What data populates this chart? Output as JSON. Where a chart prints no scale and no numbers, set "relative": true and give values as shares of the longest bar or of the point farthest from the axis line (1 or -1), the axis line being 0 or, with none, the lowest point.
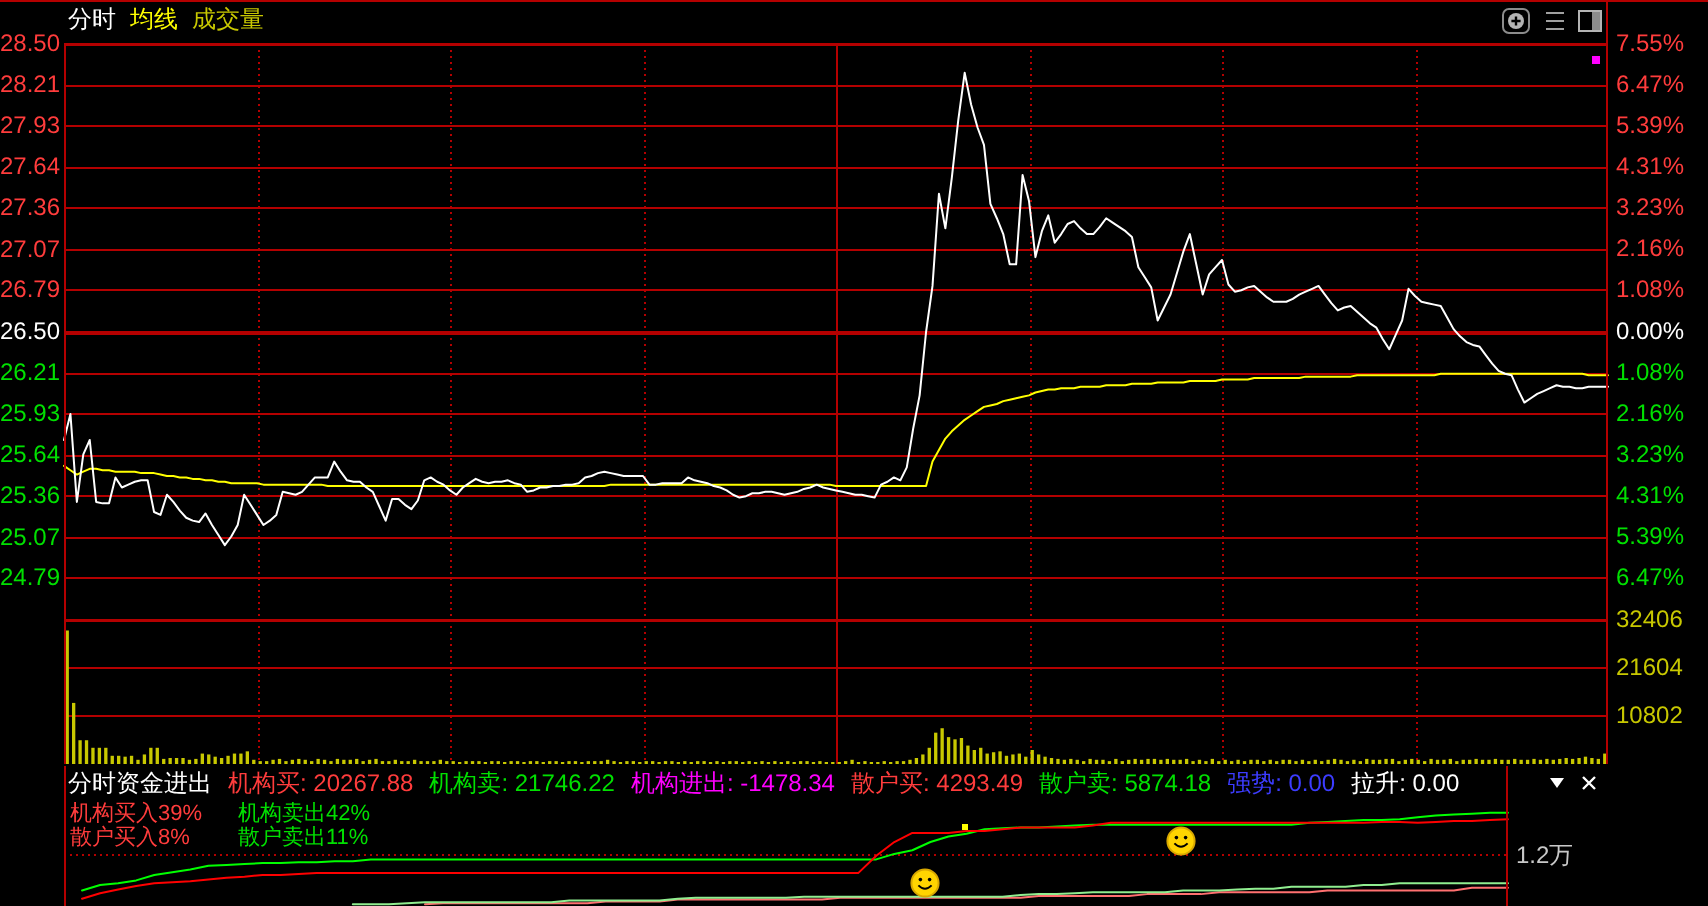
{
  "chart_data": [
    {
      "type": "line",
      "categories": [
        null,
        null,
        null,
        null,
        null,
        null,
        null,
        null,
        null,
        null,
        null,
        null,
        null,
        null,
        null,
        null,
        null,
        null,
        null,
        null,
        null,
        null,
        null,
        null,
        null,
        null,
        null,
        null,
        null,
        null,
        null,
        null,
        null,
        null,
        null,
        null,
        null,
        null,
        null,
        null,
        null,
        null,
        null,
        null,
        null,
        null,
        null,
        null,
        null,
        null,
        null,
        null,
        null,
        null,
        null,
        null,
        null,
        null,
        null,
        null,
        null,
        null,
        null,
        null,
        null,
        null,
        null,
        null,
        null,
        null,
        null,
        null,
        null,
        null,
        null,
        null,
        null,
        null,
        null,
        null,
        null,
        null,
        null,
        null,
        null,
        null,
        null,
        null,
        null,
        null,
        null,
        null,
        null,
        null,
        null,
        null,
        null,
        null,
        null,
        null,
        null,
        null,
        null,
        null,
        null,
        null,
        null,
        null,
        null,
        null,
        null,
        null,
        null,
        null,
        null,
        null,
        null,
        null,
        null,
        null,
        null,
        null,
        null,
        null,
        null,
        null,
        null,
        null,
        null,
        null,
        null,
        null,
        null,
        null,
        null,
        null,
        null,
        null,
        null,
        null,
        null,
        null,
        null,
        null,
        null,
        null,
        null,
        null,
        null,
        null,
        null,
        null,
        null,
        null,
        null,
        null,
        null,
        null,
        null,
        null,
        null,
        null,
        null,
        null,
        null,
        null,
        null,
        null,
        null,
        null,
        null,
        null,
        null,
        null,
        null,
        null,
        null,
        null,
        null,
        null,
        null,
        null,
        null,
        null,
        null,
        null,
        null,
        null,
        null,
        null,
        null,
        null,
        null,
        null,
        null,
        null,
        null,
        null,
        null,
        null,
        null,
        null,
        null,
        null,
        null,
        null,
        null,
        null,
        null,
        null,
        null,
        null,
        null,
        null,
        null,
        null,
        null,
        null,
        null,
        null,
        null,
        null,
        null,
        null,
        null,
        null,
        null,
        null,
        null,
        null,
        null,
        null,
        null,
        null,
        null,
        null,
        null,
        null,
        null,
        null,
        null
      ],
      "series": [
        {
          "name": "分时",
          "color": "#ffffff",
          "values": [
            25.75,
            25.93,
            25.32,
            25.65,
            25.75,
            25.32,
            25.31,
            25.31,
            25.49,
            25.42,
            25.44,
            25.46,
            25.47,
            25.47,
            25.25,
            25.23,
            25.37,
            25.32,
            25.26,
            25.21,
            25.19,
            25.18,
            25.24,
            25.16,
            25.09,
            25.02,
            25.08,
            25.16,
            25.37,
            25.3,
            25.23,
            25.16,
            25.19,
            25.23,
            25.39,
            25.38,
            25.37,
            25.39,
            25.44,
            25.49,
            25.49,
            25.49,
            25.6,
            25.53,
            25.47,
            25.46,
            25.46,
            25.42,
            25.39,
            25.29,
            25.19,
            25.34,
            25.34,
            25.3,
            25.27,
            25.33,
            25.47,
            25.49,
            25.46,
            25.44,
            25.4,
            25.37,
            25.42,
            25.45,
            25.48,
            25.46,
            25.45,
            25.46,
            25.46,
            25.47,
            25.45,
            25.44,
            25.39,
            25.4,
            25.42,
            25.42,
            25.43,
            25.43,
            25.44,
            25.44,
            25.45,
            25.49,
            25.5,
            25.52,
            25.53,
            25.52,
            25.51,
            25.5,
            25.5,
            25.5,
            25.5,
            25.44,
            25.44,
            25.45,
            25.45,
            25.45,
            25.45,
            25.49,
            25.47,
            25.46,
            25.45,
            25.43,
            25.42,
            25.4,
            25.37,
            25.35,
            25.36,
            25.38,
            25.38,
            25.39,
            25.39,
            25.38,
            25.37,
            25.38,
            25.39,
            25.41,
            25.42,
            25.44,
            25.42,
            25.41,
            25.4,
            25.39,
            25.38,
            25.37,
            25.37,
            25.36,
            25.35,
            25.44,
            25.46,
            25.49,
            25.47,
            25.56,
            25.83,
            26.06,
            26.5,
            26.82,
            27.46,
            27.22,
            27.57,
            27.97,
            28.3,
            28.08,
            27.92,
            27.8,
            27.39,
            27.29,
            27.18,
            26.97,
            26.97,
            27.59,
            27.41,
            27.02,
            27.2,
            27.31,
            27.12,
            27.18,
            27.25,
            27.27,
            27.22,
            27.18,
            27.18,
            27.23,
            27.29,
            27.26,
            27.23,
            27.2,
            27.16,
            26.95,
            26.88,
            26.81,
            26.58,
            26.67,
            26.76,
            26.91,
            27.06,
            27.18,
            26.97,
            26.76,
            26.9,
            26.95,
            27.0,
            26.83,
            26.78,
            26.79,
            26.81,
            26.82,
            26.78,
            26.74,
            26.71,
            26.71,
            26.71,
            26.73,
            26.76,
            26.78,
            26.8,
            26.82,
            26.76,
            26.7,
            26.65,
            26.67,
            26.68,
            26.64,
            26.6,
            26.56,
            26.53,
            26.45,
            26.38,
            26.48,
            26.58,
            26.8,
            26.75,
            26.71,
            26.7,
            26.69,
            26.68,
            26.6,
            26.52,
            26.47,
            26.43,
            26.41,
            26.4,
            26.34,
            26.28,
            26.23,
            26.21,
            26.2,
            26.1,
            26.01,
            26.04,
            26.07,
            26.09,
            26.11,
            26.13,
            26.12,
            26.12,
            26.11,
            26.11,
            26.12,
            26.12,
            26.12,
            26.12
          ]
        },
        {
          "name": "均线",
          "color": "#ffff00",
          "values": [
            25.57,
            25.54,
            25.51,
            25.53,
            25.55,
            25.55,
            25.54,
            25.54,
            25.53,
            25.53,
            25.53,
            25.53,
            25.52,
            25.52,
            25.52,
            25.51,
            25.5,
            25.5,
            25.49,
            25.49,
            25.48,
            25.48,
            25.47,
            25.47,
            25.46,
            25.46,
            25.45,
            25.45,
            25.45,
            25.45,
            25.45,
            25.44,
            25.44,
            25.44,
            25.44,
            25.44,
            25.44,
            25.44,
            25.44,
            25.44,
            25.44,
            25.43,
            25.43,
            25.43,
            25.43,
            25.43,
            25.43,
            25.43,
            25.43,
            25.43,
            25.43,
            25.43,
            25.43,
            25.43,
            25.43,
            25.43,
            25.43,
            25.43,
            25.43,
            25.43,
            25.43,
            25.43,
            25.43,
            25.43,
            25.43,
            25.43,
            25.43,
            25.43,
            25.43,
            25.43,
            25.43,
            25.43,
            25.43,
            25.43,
            25.43,
            25.43,
            25.43,
            25.43,
            25.43,
            25.43,
            25.43,
            25.43,
            25.43,
            25.43,
            25.43,
            25.44,
            25.44,
            25.44,
            25.44,
            25.44,
            25.44,
            25.44,
            25.44,
            25.44,
            25.44,
            25.44,
            25.44,
            25.44,
            25.44,
            25.44,
            25.44,
            25.44,
            25.44,
            25.44,
            25.44,
            25.44,
            25.44,
            25.44,
            25.44,
            25.44,
            25.44,
            25.44,
            25.44,
            25.44,
            25.44,
            25.44,
            25.44,
            25.44,
            25.44,
            25.44,
            25.43,
            25.43,
            25.43,
            25.43,
            25.43,
            25.43,
            25.43,
            25.43,
            25.43,
            25.43,
            25.43,
            25.43,
            25.43,
            25.43,
            25.43,
            25.6,
            25.68,
            25.76,
            25.81,
            25.85,
            25.89,
            25.92,
            25.95,
            25.98,
            25.99,
            26.0,
            26.02,
            26.03,
            26.04,
            26.05,
            26.06,
            26.08,
            26.09,
            26.1,
            26.1,
            26.11,
            26.11,
            26.11,
            26.12,
            26.12,
            26.12,
            26.12,
            26.13,
            26.13,
            26.13,
            26.13,
            26.14,
            26.14,
            26.14,
            26.14,
            26.15,
            26.15,
            26.15,
            26.15,
            26.15,
            26.16,
            26.16,
            26.16,
            26.16,
            26.16,
            26.17,
            26.17,
            26.17,
            26.17,
            26.17,
            26.18,
            26.18,
            26.18,
            26.18,
            26.18,
            26.18,
            26.18,
            26.18,
            26.19,
            26.19,
            26.19,
            26.19,
            26.19,
            26.19,
            26.19,
            26.19,
            26.2,
            26.2,
            26.2,
            26.2,
            26.2,
            26.2,
            26.2,
            26.2,
            26.2,
            26.2,
            26.2,
            26.2,
            26.2,
            26.21,
            26.21,
            26.21,
            26.21,
            26.21,
            26.21,
            26.21,
            26.21,
            26.21,
            26.21,
            26.21,
            26.21,
            26.21,
            26.21,
            26.21,
            26.21,
            26.21,
            26.21,
            26.21,
            26.21,
            26.21,
            26.21,
            26.21,
            26.2,
            26.2,
            26.2,
            26.2
          ]
        }
      ],
      "ylim": [
        24.5,
        28.5
      ],
      "yticks": [
        {
          "value": 28.5,
          "label": "28.50"
        },
        28.21,
        27.93,
        27.64,
        27.36,
        27.07,
        26.79,
        {
          "value": 26.5,
          "label": "26.50"
        },
        26.21,
        25.93,
        25.64,
        25.36,
        25.07,
        24.79
      ],
      "y2lim": [
        -7.55,
        7.55
      ],
      "y2ticks": [
        {
          "value": 7.55,
          "label": "7.55%"
        },
        {
          "value": 6.47,
          "label": "6.47%"
        },
        {
          "value": 5.39,
          "label": "5.39%"
        },
        {
          "value": 4.31,
          "label": "4.31%"
        },
        {
          "value": 3.23,
          "label": "3.23%"
        },
        {
          "value": 2.16,
          "label": "2.16%"
        },
        {
          "value": 1.08,
          "label": "1.08%"
        },
        {
          "value": 0,
          "label": "0.00%"
        },
        {
          "value": -1.08,
          "label": "1.08%"
        },
        {
          "value": -2.16,
          "label": "2.16%"
        },
        {
          "value": -3.23,
          "label": "3.23%"
        },
        {
          "value": -4.31,
          "label": "4.31%"
        },
        {
          "value": -5.39,
          "label": "5.39%"
        },
        {
          "value": -6.47,
          "label": "6.47%"
        }
      ],
      "ref_lines": [
        {
          "axis": "y",
          "value": 26.5
        }
      ],
      "grid": true
    },
    {
      "type": "bar",
      "categories": [
        null,
        null,
        null,
        null,
        null,
        null,
        null,
        null,
        null,
        null,
        null,
        null,
        null,
        null,
        null,
        null,
        null,
        null,
        null,
        null,
        null,
        null,
        null,
        null,
        null,
        null,
        null,
        null,
        null,
        null,
        null,
        null,
        null,
        null,
        null,
        null,
        null,
        null,
        null,
        null,
        null,
        null,
        null,
        null,
        null,
        null,
        null,
        null,
        null,
        null,
        null,
        null,
        null,
        null,
        null,
        null,
        null,
        null,
        null,
        null,
        null,
        null,
        null,
        null,
        null,
        null,
        null,
        null,
        null,
        null,
        null,
        null,
        null,
        null,
        null,
        null,
        null,
        null,
        null,
        null,
        null,
        null,
        null,
        null,
        null,
        null,
        null,
        null,
        null,
        null,
        null,
        null,
        null,
        null,
        null,
        null,
        null,
        null,
        null,
        null,
        null,
        null,
        null,
        null,
        null,
        null,
        null,
        null,
        null,
        null,
        null,
        null,
        null,
        null,
        null,
        null,
        null,
        null,
        null,
        null,
        null,
        null,
        null,
        null,
        null,
        null,
        null,
        null,
        null,
        null,
        null,
        null,
        null,
        null,
        null,
        null,
        null,
        null,
        null,
        null,
        null,
        null,
        null,
        null,
        null,
        null,
        null,
        null,
        null,
        null,
        null,
        null,
        null,
        null,
        null,
        null,
        null,
        null,
        null,
        null,
        null,
        null,
        null,
        null,
        null,
        null,
        null,
        null,
        null,
        null,
        null,
        null,
        null,
        null,
        null,
        null,
        null,
        null,
        null,
        null,
        null,
        null,
        null,
        null,
        null,
        null,
        null,
        null,
        null,
        null,
        null,
        null,
        null,
        null,
        null,
        null,
        null,
        null,
        null,
        null,
        null,
        null,
        null,
        null,
        null,
        null,
        null,
        null,
        null,
        null,
        null,
        null,
        null,
        null,
        null,
        null,
        null,
        null,
        null,
        null,
        null,
        null,
        null,
        null,
        null,
        null,
        null,
        null,
        null,
        null,
        null,
        null,
        null,
        null,
        null,
        null,
        null,
        null,
        null,
        null
      ],
      "series": [
        {
          "name": "成交量",
          "color": "#c8c800",
          "values": [
            29900,
            13600,
            5200,
            5200,
            3500,
            3500,
            3500,
            1700,
            1700,
            1500,
            1700,
            800,
            2000,
            3500,
            3500,
            1000,
            1200,
            1200,
            1200,
            800,
            1000,
            2200,
            2000,
            1500,
            1200,
            1700,
            2200,
            2200,
            2700,
            800,
            500,
            500,
            800,
            1000,
            500,
            800,
            1000,
            800,
            500,
            1000,
            800,
            500,
            1000,
            800,
            800,
            1000,
            500,
            800,
            1000,
            500,
            500,
            800,
            500,
            500,
            800,
            500,
            500,
            500,
            800,
            500,
            500,
            300,
            500,
            500,
            500,
            300,
            500,
            500,
            300,
            500,
            500,
            300,
            500,
            500,
            300,
            500,
            500,
            300,
            500,
            500,
            300,
            500,
            500,
            500,
            800,
            500,
            300,
            500,
            500,
            300,
            500,
            500,
            300,
            500,
            500,
            300,
            500,
            300,
            500,
            500,
            300,
            500,
            300,
            500,
            500,
            300,
            500,
            300,
            500,
            300,
            500,
            300,
            500,
            300,
            500,
            500,
            300,
            500,
            300,
            300,
            300,
            500,
            800,
            300,
            500,
            300,
            300,
            500,
            300,
            500,
            500,
            800,
            1200,
            2000,
            3500,
            6900,
            7900,
            5900,
            5400,
            5700,
            4000,
            3000,
            3500,
            2200,
            2500,
            2700,
            1700,
            2000,
            2200,
            1500,
            3000,
            2000,
            1500,
            1200,
            1000,
            800,
            1000,
            800,
            500,
            1000,
            800,
            800,
            500,
            1000,
            500,
            800,
            1000,
            800,
            1000,
            1000,
            800,
            1000,
            800,
            800,
            1000,
            500,
            800,
            500,
            1000,
            500,
            800,
            500,
            800,
            500,
            800,
            800,
            500,
            800,
            500,
            800,
            800,
            500,
            800,
            500,
            800,
            500,
            800,
            1000,
            800,
            500,
            800,
            500,
            1000,
            800,
            800,
            1000,
            1000,
            500,
            800,
            1000,
            800,
            500,
            1000,
            800,
            800,
            1000,
            500,
            800,
            800,
            1000,
            800,
            800,
            1000,
            800,
            800,
            1000,
            800,
            800,
            1000,
            800,
            1000,
            800,
            1000,
            1200,
            1000,
            1200,
            1500,
            1200,
            1000,
            2200
          ]
        }
      ],
      "ylim": [
        0,
        32406
      ],
      "yticks": [
        10802,
        21604,
        32406
      ],
      "grid": true
    },
    {
      "type": "line",
      "relative": true,
      "title": "分时资金进出",
      "annotations": [
        "机构买: 20267.88",
        "机构卖: 21746.22",
        "机构进出: -1478.34",
        "散户买: 4293.49",
        "散户卖: 5874.18",
        "强势: 0.00",
        "拉升: 0.00",
        "机构买入39%",
        "机构卖出42%",
        "散户买入8%",
        "散户卖出11%"
      ],
      "categories": [
        null,
        null,
        null,
        null,
        null,
        null,
        null,
        null,
        null,
        null,
        null,
        null,
        null,
        null,
        null,
        null,
        null,
        null,
        null,
        null,
        null,
        null,
        null,
        null,
        null,
        null,
        null,
        null,
        null,
        null,
        null,
        null,
        null,
        null,
        null,
        null,
        null,
        null,
        null,
        null,
        null,
        null,
        null,
        null,
        null,
        null,
        null,
        null,
        null,
        null,
        null,
        null,
        null,
        null,
        null,
        null,
        null,
        null,
        null,
        null,
        null,
        null,
        null,
        null,
        null,
        null,
        null,
        null,
        null,
        null,
        null,
        null,
        null,
        null,
        null,
        null,
        null,
        null,
        null,
        null,
        null
      ],
      "series": [
        {
          "color": "#ff0000",
          "values": [
            null,
            0.06,
            0.12,
            0.16,
            0.2,
            0.23,
            0.24,
            0.25,
            0.27,
            0.29,
            0.3,
            0.32,
            0.32,
            0.33,
            0.34,
            0.34,
            0.34,
            0.34,
            0.34,
            0.34,
            0.34,
            0.34,
            0.34,
            0.34,
            0.34,
            0.34,
            0.34,
            0.34,
            0.34,
            0.34,
            0.34,
            0.34,
            0.34,
            0.34,
            0.34,
            0.34,
            0.34,
            0.34,
            0.34,
            0.34,
            0.34,
            0.34,
            0.34,
            0.34,
            0.34,
            0.53,
            0.68,
            0.78,
            0.78,
            0.78,
            0.8,
            0.8,
            0.82,
            0.84,
            0.84,
            0.84,
            0.84,
            0.86,
            0.89,
            0.89,
            0.89,
            0.89,
            0.89,
            0.89,
            0.89,
            0.89,
            0.89,
            0.89,
            0.89,
            0.89,
            0.89,
            0.89,
            0.89,
            0.9,
            0.9,
            0.89,
            0.9,
            0.91,
            0.91,
            0.92,
            0.93
          ]
        },
        {
          "color": "#00ff00",
          "values": [
            null,
            0.15,
            0.21,
            0.23,
            0.26,
            0.32,
            0.35,
            0.38,
            0.42,
            0.43,
            0.44,
            0.45,
            0.45,
            0.46,
            0.46,
            0.47,
            0.47,
            0.49,
            0.49,
            0.49,
            0.49,
            0.49,
            0.49,
            0.49,
            0.49,
            0.49,
            0.49,
            0.49,
            0.49,
            0.49,
            0.49,
            0.49,
            0.49,
            0.49,
            0.49,
            0.49,
            0.49,
            0.49,
            0.49,
            0.49,
            0.49,
            0.49,
            0.49,
            0.49,
            0.49,
            0.49,
            0.55,
            0.59,
            0.68,
            0.74,
            0.77,
            0.82,
            0.83,
            0.84,
            0.84,
            0.85,
            0.86,
            0.87,
            0.87,
            0.87,
            0.87,
            0.87,
            0.87,
            0.87,
            0.87,
            0.87,
            0.87,
            0.87,
            0.87,
            0.89,
            0.9,
            0.91,
            0.92,
            0.92,
            0.93,
            0.95,
            0.97,
            0.98,
            0.99,
            1.0,
            1.0
          ]
        },
        {
          "color": "#90ee90",
          "values": [
            null,
            null,
            null,
            null,
            null,
            null,
            null,
            null,
            null,
            null,
            null,
            null,
            null,
            null,
            null,
            null,
            0.0,
            0.0,
            0.0,
            0.01,
            0.02,
            0.02,
            0.02,
            0.02,
            0.02,
            0.02,
            0.02,
            0.02,
            0.04,
            0.04,
            0.04,
            0.04,
            0.04,
            0.04,
            0.06,
            0.07,
            0.07,
            0.07,
            0.07,
            0.07,
            0.07,
            0.08,
            0.08,
            0.08,
            0.08,
            0.08,
            0.08,
            0.08,
            0.08,
            0.08,
            0.08,
            0.08,
            0.08,
            0.1,
            0.11,
            0.11,
            0.12,
            0.13,
            0.13,
            0.13,
            0.13,
            0.13,
            0.15,
            0.15,
            0.15,
            0.16,
            0.17,
            0.17,
            0.19,
            0.19,
            0.19,
            0.19,
            0.21,
            0.21,
            0.23,
            0.23,
            0.23,
            0.23,
            0.23,
            0.23,
            0.23
          ]
        },
        {
          "color": "#ff7070",
          "values": [
            null,
            null,
            null,
            null,
            null,
            null,
            null,
            null,
            null,
            null,
            null,
            null,
            null,
            null,
            null,
            null,
            null,
            null,
            null,
            null,
            0.0,
            0.01,
            0.01,
            0.01,
            0.01,
            0.01,
            0.01,
            0.01,
            0.01,
            0.01,
            0.03,
            0.03,
            0.03,
            0.03,
            0.05,
            0.05,
            0.05,
            0.05,
            0.05,
            0.05,
            0.05,
            0.05,
            0.05,
            0.07,
            0.07,
            0.07,
            0.07,
            0.07,
            0.07,
            0.07,
            0.07,
            0.07,
            0.07,
            0.07,
            0.09,
            0.09,
            0.09,
            0.09,
            0.09,
            0.09,
            0.11,
            0.11,
            0.11,
            0.11,
            0.13,
            0.13,
            0.13,
            0.13,
            0.13,
            0.13,
            0.15,
            0.15,
            0.15,
            0.15,
            0.15,
            0.15,
            0.15,
            0.15,
            0.18,
            0.18,
            0.18
          ]
        }
      ],
      "ref_lines": [
        {
          "axis": "y",
          "value": 0.54,
          "label": "1.2万",
          "line_style": "dotted"
        }
      ]
    }
  ]
}
